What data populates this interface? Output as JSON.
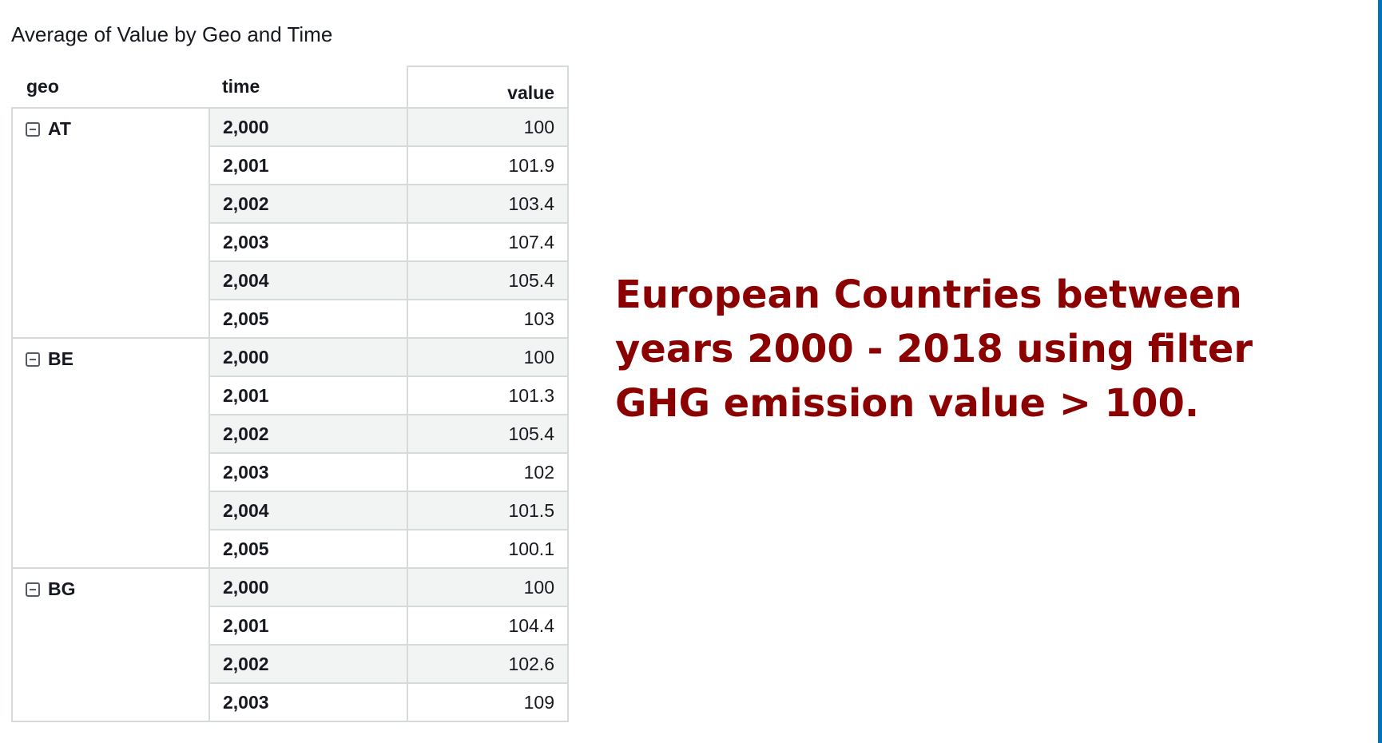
{
  "visual": {
    "title": "Average of Value by Geo and Time"
  },
  "pivot": {
    "headers": {
      "geo": "geo",
      "time": "time",
      "value": "value"
    },
    "groups": [
      {
        "geo": "AT",
        "rows": [
          {
            "time": "2,000",
            "value": "100"
          },
          {
            "time": "2,001",
            "value": "101.9"
          },
          {
            "time": "2,002",
            "value": "103.4"
          },
          {
            "time": "2,003",
            "value": "107.4"
          },
          {
            "time": "2,004",
            "value": "105.4"
          },
          {
            "time": "2,005",
            "value": "103"
          }
        ]
      },
      {
        "geo": "BE",
        "rows": [
          {
            "time": "2,000",
            "value": "100"
          },
          {
            "time": "2,001",
            "value": "101.3"
          },
          {
            "time": "2,002",
            "value": "105.4"
          },
          {
            "time": "2,003",
            "value": "102"
          },
          {
            "time": "2,004",
            "value": "101.5"
          },
          {
            "time": "2,005",
            "value": "100.1"
          }
        ]
      },
      {
        "geo": "BG",
        "rows": [
          {
            "time": "2,000",
            "value": "100"
          },
          {
            "time": "2,001",
            "value": "104.4"
          },
          {
            "time": "2,002",
            "value": "102.6"
          },
          {
            "time": "2,003",
            "value": "109"
          }
        ]
      }
    ]
  },
  "annotation": {
    "text": "European Countries between years 2000 - 2018 using filter GHG emission value > 100."
  },
  "colors": {
    "annotation": "#8b0000",
    "row_shade": "#f2f3f3",
    "grid": "#d5dbdb",
    "scrollbar": "#0073bb"
  }
}
